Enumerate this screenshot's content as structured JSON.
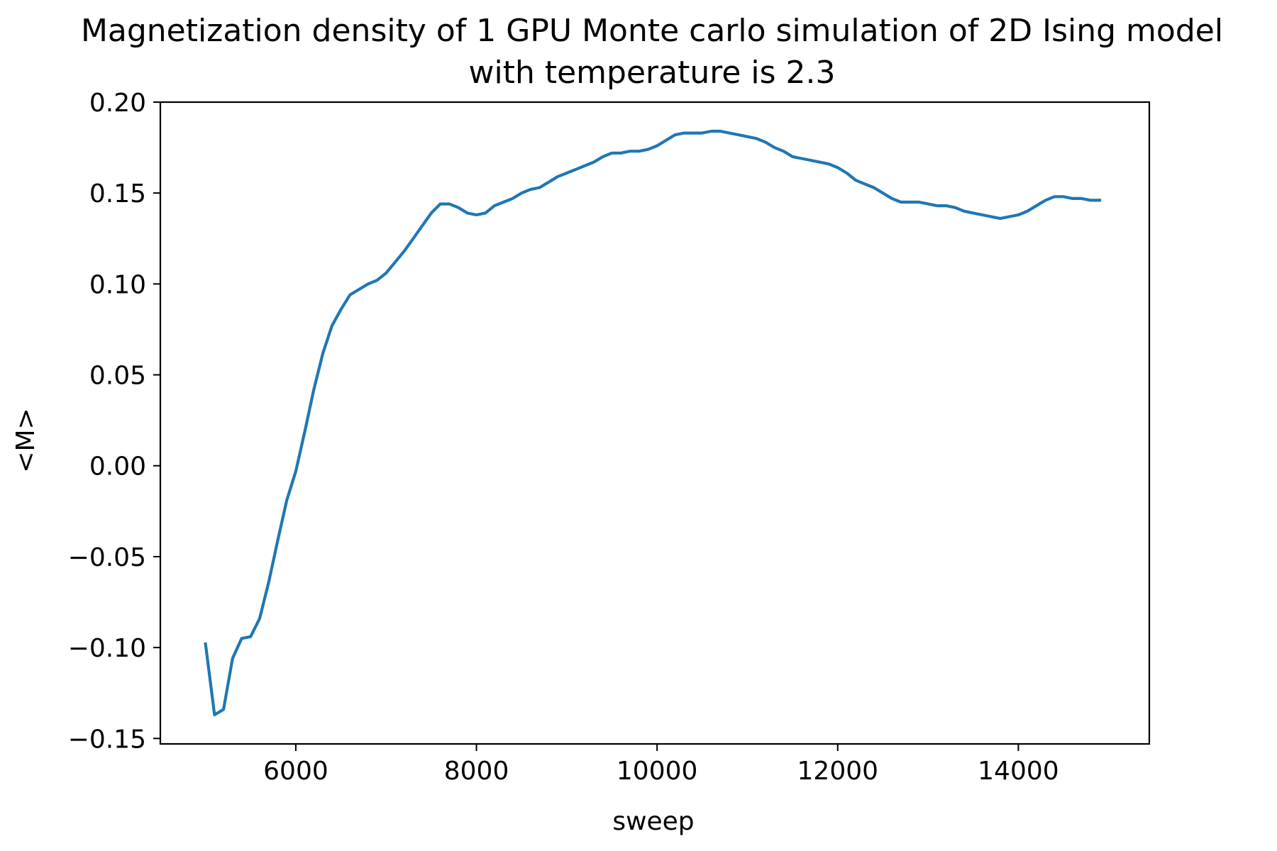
{
  "chart_data": {
    "type": "line",
    "title_lines": [
      "Magnetization density of 1 GPU Monte carlo simulation of 2D Ising model",
      "with temperature is 2.3"
    ],
    "xlabel": "sweep",
    "ylabel": "<M>",
    "xlim": [
      4500,
      15450
    ],
    "ylim": [
      -0.153,
      0.2
    ],
    "x_ticks": [
      6000,
      8000,
      10000,
      12000,
      14000
    ],
    "y_ticks": [
      0.2,
      0.15,
      0.1,
      0.05,
      0.0,
      -0.05,
      -0.1,
      -0.15
    ],
    "x_tick_labels": [
      "6000",
      "8000",
      "10000",
      "12000",
      "14000"
    ],
    "y_tick_labels": [
      "0.20",
      "0.15",
      "0.10",
      "0.05",
      "0.00",
      "−0.05",
      "−0.10",
      "−0.15"
    ],
    "grid": false,
    "line_color": "#1f77b4",
    "series": [
      {
        "x": [
          5000,
          5100,
          5200,
          5300,
          5400,
          5500,
          5600,
          5700,
          5800,
          5900,
          6000,
          6100,
          6200,
          6300,
          6400,
          6500,
          6600,
          6700,
          6800,
          6900,
          7000,
          7100,
          7200,
          7300,
          7400,
          7500,
          7600,
          7700,
          7800,
          7900,
          8000,
          8100,
          8200,
          8300,
          8400,
          8500,
          8600,
          8700,
          8800,
          8900,
          9000,
          9100,
          9200,
          9300,
          9400,
          9500,
          9600,
          9700,
          9800,
          9900,
          10000,
          10100,
          10200,
          10300,
          10400,
          10500,
          10600,
          10700,
          10800,
          10900,
          11000,
          11100,
          11200,
          11300,
          11400,
          11500,
          11600,
          11700,
          11800,
          11900,
          12000,
          12100,
          12200,
          12300,
          12400,
          12500,
          12600,
          12700,
          12800,
          12900,
          13000,
          13100,
          13200,
          13300,
          13400,
          13500,
          13600,
          13700,
          13800,
          13900,
          14000,
          14100,
          14200,
          14300,
          14400,
          14500,
          14600,
          14700,
          14800,
          14900
        ],
        "y": [
          -0.098,
          -0.137,
          -0.134,
          -0.106,
          -0.095,
          -0.094,
          -0.084,
          -0.064,
          -0.041,
          -0.019,
          -0.003,
          0.019,
          0.042,
          0.062,
          0.077,
          0.086,
          0.094,
          0.097,
          0.1,
          0.102,
          0.106,
          0.112,
          0.118,
          0.125,
          0.132,
          0.139,
          0.144,
          0.144,
          0.142,
          0.139,
          0.138,
          0.139,
          0.143,
          0.145,
          0.147,
          0.15,
          0.152,
          0.153,
          0.156,
          0.159,
          0.161,
          0.163,
          0.165,
          0.167,
          0.17,
          0.172,
          0.172,
          0.173,
          0.173,
          0.174,
          0.176,
          0.179,
          0.182,
          0.183,
          0.183,
          0.183,
          0.184,
          0.184,
          0.183,
          0.182,
          0.181,
          0.18,
          0.178,
          0.175,
          0.173,
          0.17,
          0.169,
          0.168,
          0.167,
          0.166,
          0.164,
          0.161,
          0.157,
          0.155,
          0.153,
          0.15,
          0.147,
          0.145,
          0.145,
          0.145,
          0.144,
          0.143,
          0.143,
          0.142,
          0.14,
          0.139,
          0.138,
          0.137,
          0.136,
          0.137,
          0.138,
          0.14,
          0.143,
          0.146,
          0.148,
          0.148,
          0.147,
          0.147,
          0.146,
          0.146
        ]
      }
    ]
  }
}
